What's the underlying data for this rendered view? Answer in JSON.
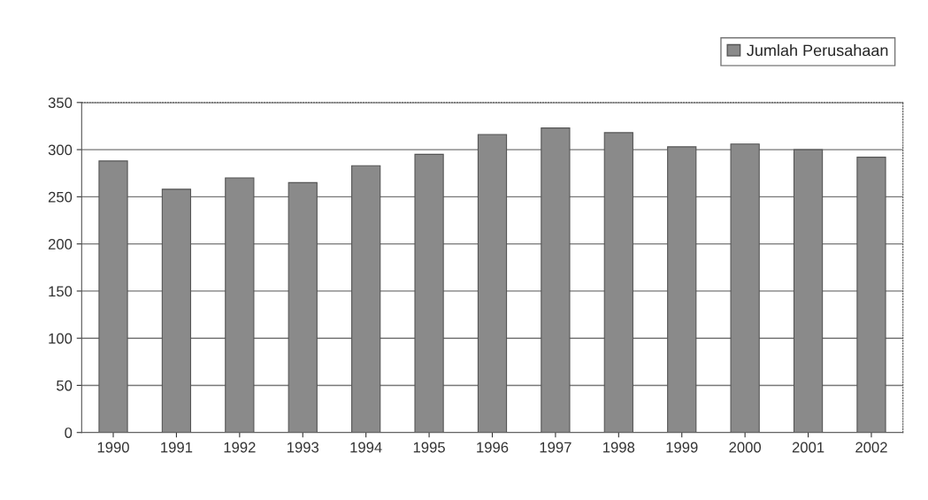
{
  "chart_data": {
    "type": "bar",
    "categories": [
      "1990",
      "1991",
      "1992",
      "1993",
      "1994",
      "1995",
      "1996",
      "1997",
      "1998",
      "1999",
      "2000",
      "2001",
      "2002"
    ],
    "series": [
      {
        "name": "Jumlah Perusahaan",
        "color": "#8a8a8a",
        "values": [
          288,
          258,
          270,
          265,
          283,
          295,
          316,
          323,
          318,
          303,
          306,
          300,
          292
        ]
      }
    ],
    "ylim": [
      0,
      350
    ],
    "yticks": [
      0,
      50,
      100,
      150,
      200,
      250,
      300,
      350
    ],
    "grid": "y",
    "legend": "top right"
  }
}
